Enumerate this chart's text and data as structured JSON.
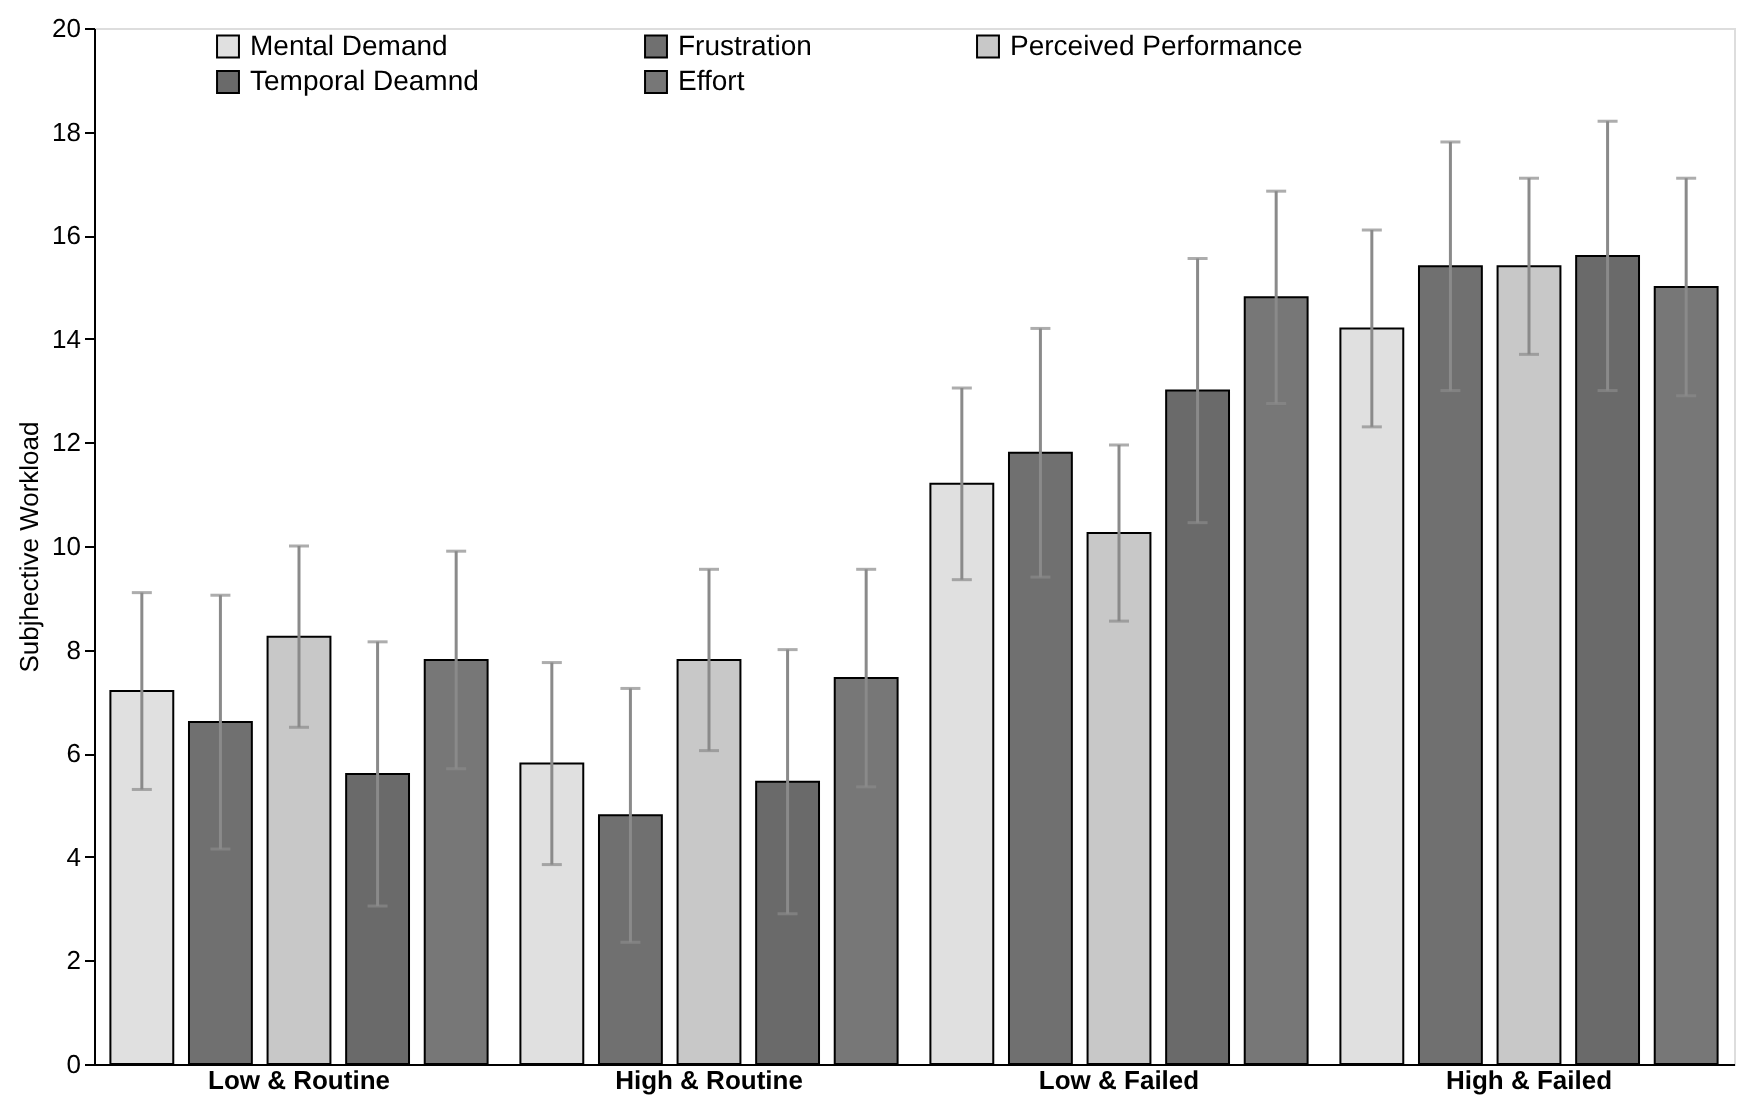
{
  "chart_data": {
    "type": "bar",
    "ylabel": "Subjhective Workload",
    "categories": [
      "Low & Routine",
      "High & Routine",
      "Low & Failed",
      "High & Failed"
    ],
    "series": [
      {
        "name": "Mental Demand",
        "color": "#e0e0e0",
        "values": [
          7.2,
          5.8,
          11.2,
          14.2
        ],
        "errors": [
          1.9,
          1.95,
          1.85,
          1.9
        ]
      },
      {
        "name": "Frustration",
        "color": "#707070",
        "values": [
          6.6,
          4.8,
          11.8,
          15.4
        ],
        "errors": [
          2.45,
          2.45,
          2.4,
          2.4
        ]
      },
      {
        "name": "Perceived Performance",
        "color": "#c8c8c8",
        "values": [
          8.25,
          7.8,
          10.25,
          15.4
        ],
        "errors": [
          1.75,
          1.75,
          1.7,
          1.7
        ]
      },
      {
        "name": "Temporal Deamnd",
        "color": "#6a6a6a",
        "values": [
          5.6,
          5.45,
          13.0,
          15.6
        ],
        "errors": [
          2.55,
          2.55,
          2.55,
          2.6
        ]
      },
      {
        "name": "Effort",
        "color": "#777777",
        "values": [
          7.8,
          7.45,
          14.8,
          15.0
        ],
        "errors": [
          2.1,
          2.1,
          2.05,
          2.1
        ]
      }
    ],
    "ylim": [
      0,
      20
    ],
    "yticks": [
      0,
      2,
      4,
      6,
      8,
      10,
      12,
      14,
      16,
      18,
      20
    ],
    "grid": false,
    "legend": "top"
  }
}
